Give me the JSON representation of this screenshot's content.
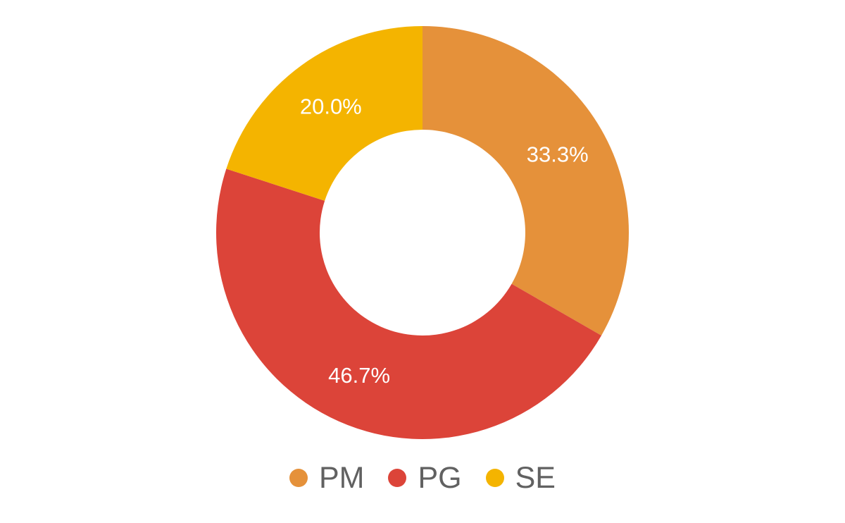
{
  "chart_data": {
    "type": "pie",
    "categories": [
      "PM",
      "PG",
      "SE"
    ],
    "values": [
      33.3,
      46.7,
      20.0
    ],
    "data_labels": [
      "33.3%",
      "46.7%",
      "20.0%"
    ],
    "colors": [
      "#E5913A",
      "#DC4439",
      "#F4B400"
    ],
    "label_color": "#FFFFFF",
    "legend_text_color": "#616161",
    "legend_position": "bottom",
    "donut": true
  }
}
